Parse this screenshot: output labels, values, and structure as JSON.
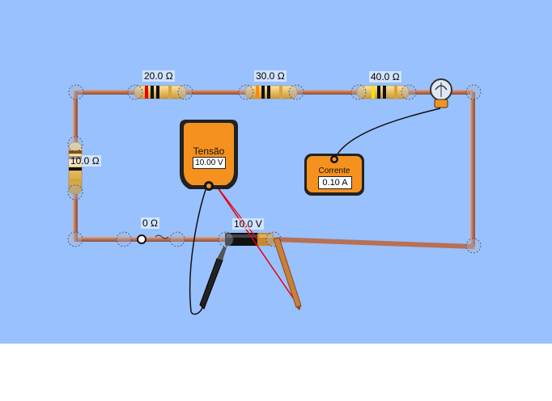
{
  "circuit": {
    "resistors": [
      {
        "id": "r1",
        "label": "20.0 Ω"
      },
      {
        "id": "r2",
        "label": "30.0 Ω"
      },
      {
        "id": "r3",
        "label": "40.0 Ω"
      },
      {
        "id": "r4",
        "label": "10.0 Ω"
      }
    ],
    "switch_label": "0 Ω",
    "battery_label": "10.0 V"
  },
  "voltmeter": {
    "title": "Tensão",
    "reading": "10.00 V"
  },
  "ammeter": {
    "title": "Corrente",
    "reading": "0.10 A"
  },
  "colors": {
    "background": "#99c1fe",
    "wire": "#c98a6a",
    "meter": "#f5921f",
    "probe_red": "#e6000f"
  }
}
